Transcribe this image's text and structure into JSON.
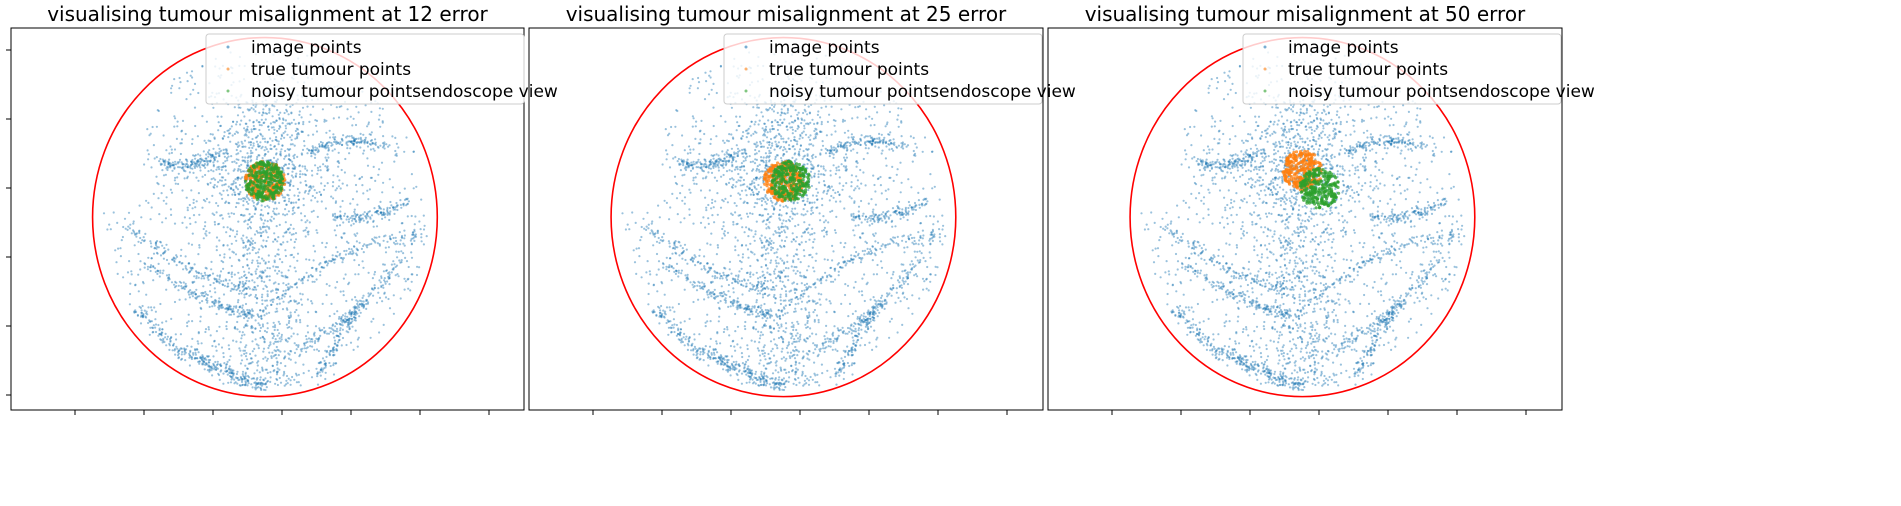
{
  "chart_data": [
    {
      "type": "scatter",
      "title": "visualising tumour misalignment at 12 error",
      "xlabel": "",
      "ylabel": "",
      "legend": {
        "placement": "top-right",
        "entries": [
          "image points",
          "true tumour points",
          "noisy tumour points",
          "endoscope view"
        ]
      },
      "series": [
        {
          "name": "image points",
          "color": "#1f77b4"
        },
        {
          "name": "true tumour points",
          "color": "#ff7f0e",
          "center": [
            0.5,
            0.4
          ]
        },
        {
          "name": "noisy tumour points",
          "color": "#2ca02c",
          "center": [
            0.5,
            0.4
          ]
        },
        {
          "name": "endoscope view",
          "color": "#ff0000"
        }
      ],
      "error": 12
    },
    {
      "type": "scatter",
      "title": "visualising tumour misalignment at 25 error",
      "xlabel": "",
      "ylabel": "",
      "legend": {
        "placement": "top-right",
        "entries": [
          "image points",
          "true tumour points",
          "noisy tumour points",
          "endoscope view"
        ]
      },
      "series": [
        {
          "name": "image points",
          "color": "#1f77b4"
        },
        {
          "name": "true tumour points",
          "color": "#ff7f0e",
          "center": [
            0.5,
            0.4
          ]
        },
        {
          "name": "noisy tumour points",
          "color": "#2ca02c",
          "center": [
            0.52,
            0.4
          ]
        },
        {
          "name": "endoscope view",
          "color": "#ff0000"
        }
      ],
      "error": 25
    },
    {
      "type": "scatter",
      "title": "visualising tumour misalignment at 50 error",
      "xlabel": "",
      "ylabel": "",
      "legend": {
        "placement": "top-right",
        "entries": [
          "image points",
          "true tumour points",
          "noisy tumour points",
          "endoscope view"
        ]
      },
      "series": [
        {
          "name": "image points",
          "color": "#1f77b4"
        },
        {
          "name": "true tumour points",
          "color": "#ff7f0e",
          "center": [
            0.5,
            0.37
          ]
        },
        {
          "name": "noisy tumour points",
          "color": "#2ca02c",
          "center": [
            0.55,
            0.42
          ]
        },
        {
          "name": "endoscope view",
          "color": "#ff0000"
        }
      ],
      "error": 50
    }
  ]
}
